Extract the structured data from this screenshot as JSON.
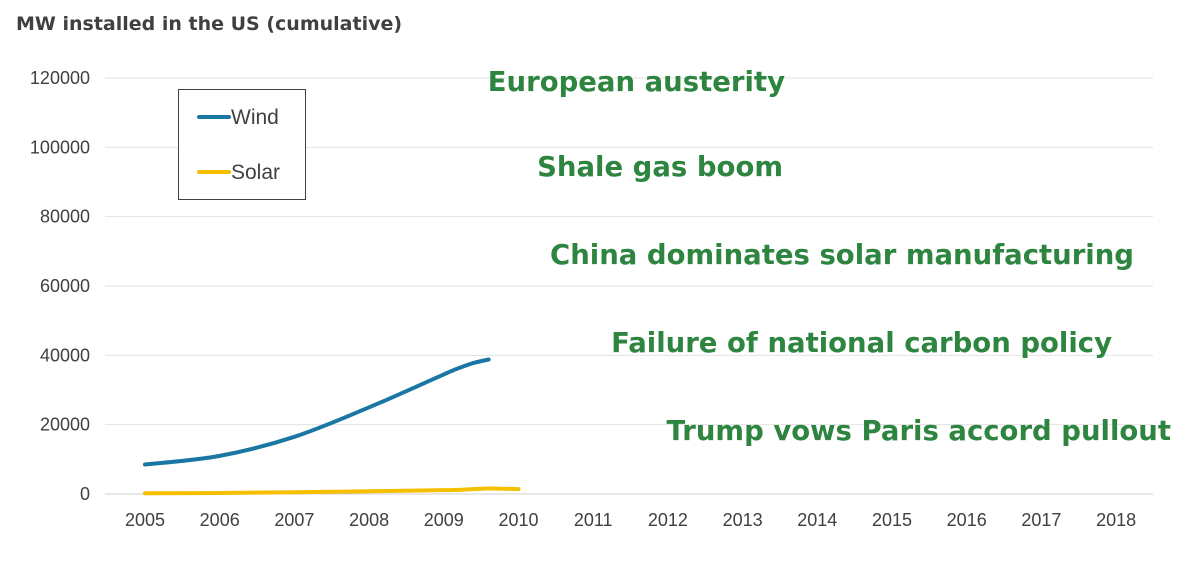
{
  "chart_data": {
    "type": "line",
    "title": "MW installed in the US (cumulative)",
    "xlabel": "",
    "ylabel": "",
    "ylim": [
      0,
      120000
    ],
    "yticks": [
      0,
      20000,
      40000,
      60000,
      80000,
      100000,
      120000
    ],
    "categories": [
      "2005",
      "2006",
      "2007",
      "2008",
      "2009",
      "2010",
      "2011",
      "2012",
      "2013",
      "2014",
      "2015",
      "2016",
      "2017",
      "2018"
    ],
    "grid": true,
    "legend_position": "top-left",
    "series": [
      {
        "name": "Wind",
        "color": "#1a76a2",
        "x": [
          2005,
          2006,
          2007,
          2008,
          2009,
          2009.2,
          2009.4,
          2009.6
        ],
        "y": [
          8500,
          11000,
          16500,
          25000,
          34500,
          36300,
          37800,
          38800
        ]
      },
      {
        "name": "Solar",
        "color": "#f5c000",
        "x": [
          2005,
          2006,
          2007,
          2008,
          2009,
          2009.3,
          2009.6,
          2009.8,
          2010
        ],
        "y": [
          200,
          300,
          500,
          800,
          1100,
          1300,
          1600,
          1500,
          1400
        ]
      }
    ],
    "annotations": [
      {
        "text": "European austerity",
        "color": "#2e8540"
      },
      {
        "text": "Shale gas boom",
        "color": "#2e8540"
      },
      {
        "text": "China dominates solar manufacturing",
        "color": "#2e8540"
      },
      {
        "text": "Failure of national carbon policy",
        "color": "#2e8540"
      },
      {
        "text": "Trump vows Paris accord pullout",
        "color": "#2e8540"
      }
    ]
  }
}
